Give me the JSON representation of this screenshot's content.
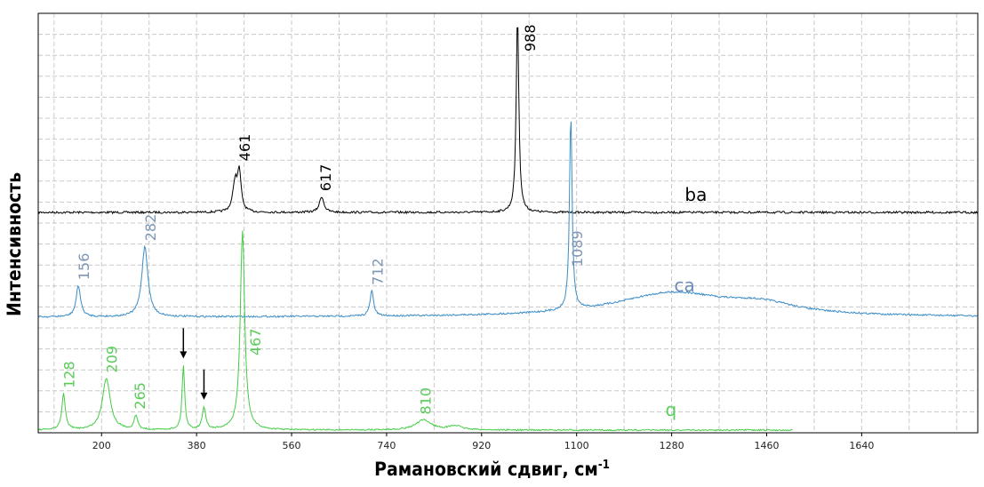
{
  "chart_data": {
    "type": "line",
    "xlabel": "Рамановский сдвиг, см",
    "xlabel_sup": "-1",
    "ylabel": "Интенсивность",
    "xlim": [
      80,
      1860
    ],
    "x_ticks": [
      "200",
      "380",
      "560",
      "740",
      "920",
      "1100",
      "1280",
      "1460",
      "1640"
    ],
    "x_tick_values": [
      200,
      380,
      560,
      740,
      920,
      1100,
      1280,
      1460,
      1640
    ],
    "grid": true,
    "series": [
      {
        "name": "ba",
        "color": "#000000",
        "x_range": [
          80,
          1860
        ],
        "baseline": 0,
        "peaks": [
          {
            "x": 453,
            "h": 0.15,
            "w": 5
          },
          {
            "x": 461,
            "h": 0.19,
            "w": 4
          },
          {
            "x": 617,
            "h": 0.08,
            "w": 5
          },
          {
            "x": 988,
            "h": 1.0,
            "w": 3
          }
        ],
        "annotations": [
          "461",
          "617",
          "988"
        ],
        "annotation_x": [
          461,
          617,
          988
        ]
      },
      {
        "name": "ca",
        "color": "#3a8cc8",
        "x_range": [
          80,
          1860
        ],
        "baseline": 0,
        "peaks": [
          {
            "x": 156,
            "h": 0.16,
            "w": 5
          },
          {
            "x": 282,
            "h": 0.36,
            "w": 7
          },
          {
            "x": 712,
            "h": 0.13,
            "w": 4
          },
          {
            "x": 1089,
            "h": 1.0,
            "w": 3
          },
          {
            "x": 1280,
            "h": 0.12,
            "w": 130
          },
          {
            "x": 1450,
            "h": 0.05,
            "w": 80
          }
        ],
        "annotations": [
          "156",
          "282",
          "712",
          "1089"
        ],
        "annotation_x": [
          156,
          282,
          712,
          1089
        ]
      },
      {
        "name": "q",
        "color": "#44cc44",
        "x_range": [
          80,
          1510
        ],
        "baseline": 0,
        "peaks": [
          {
            "x": 128,
            "h": 0.18,
            "w": 4
          },
          {
            "x": 209,
            "h": 0.26,
            "w": 9
          },
          {
            "x": 265,
            "h": 0.07,
            "w": 4
          },
          {
            "x": 355,
            "h": 0.32,
            "w": 3
          },
          {
            "x": 394,
            "h": 0.11,
            "w": 4
          },
          {
            "x": 467,
            "h": 1.0,
            "w": 5
          },
          {
            "x": 810,
            "h": 0.05,
            "w": 18
          },
          {
            "x": 870,
            "h": 0.02,
            "w": 15
          }
        ],
        "annotations": [
          "128",
          "209",
          "265",
          "467",
          "810"
        ],
        "annotation_x": [
          128,
          209,
          265,
          467,
          810
        ],
        "arrows_at": [
          355,
          394
        ]
      }
    ]
  }
}
